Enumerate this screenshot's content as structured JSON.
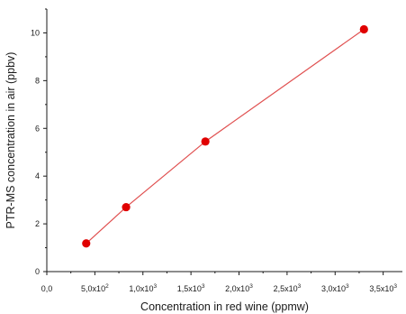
{
  "chart_data": {
    "type": "line",
    "title": "",
    "xlabel": "Concentration in red wine (ppmw)",
    "ylabel": "PTR-MS concentration in air (ppbv)",
    "xlim": [
      0,
      3700
    ],
    "ylim": [
      0,
      11
    ],
    "x_ticks": [
      {
        "value": 0,
        "mantissa": "0,0",
        "exponent": ""
      },
      {
        "value": 500,
        "mantissa": "5,0x10",
        "exponent": "2"
      },
      {
        "value": 1000,
        "mantissa": "1,0x10",
        "exponent": "3"
      },
      {
        "value": 1500,
        "mantissa": "1,5x10",
        "exponent": "3"
      },
      {
        "value": 2000,
        "mantissa": "2,0x10",
        "exponent": "3"
      },
      {
        "value": 2500,
        "mantissa": "2,5x10",
        "exponent": "3"
      },
      {
        "value": 3000,
        "mantissa": "3,0x10",
        "exponent": "3"
      },
      {
        "value": 3500,
        "mantissa": "3,5x10",
        "exponent": "3"
      }
    ],
    "y_ticks": [
      "0",
      "2",
      "4",
      "6",
      "8",
      "10"
    ],
    "grid": false,
    "series": [
      {
        "x": [
          410,
          825,
          1650,
          3300
        ],
        "y": [
          1.18,
          2.7,
          5.45,
          10.15
        ],
        "line_color": "#e05050",
        "marker_color": "#e00000"
      }
    ]
  }
}
